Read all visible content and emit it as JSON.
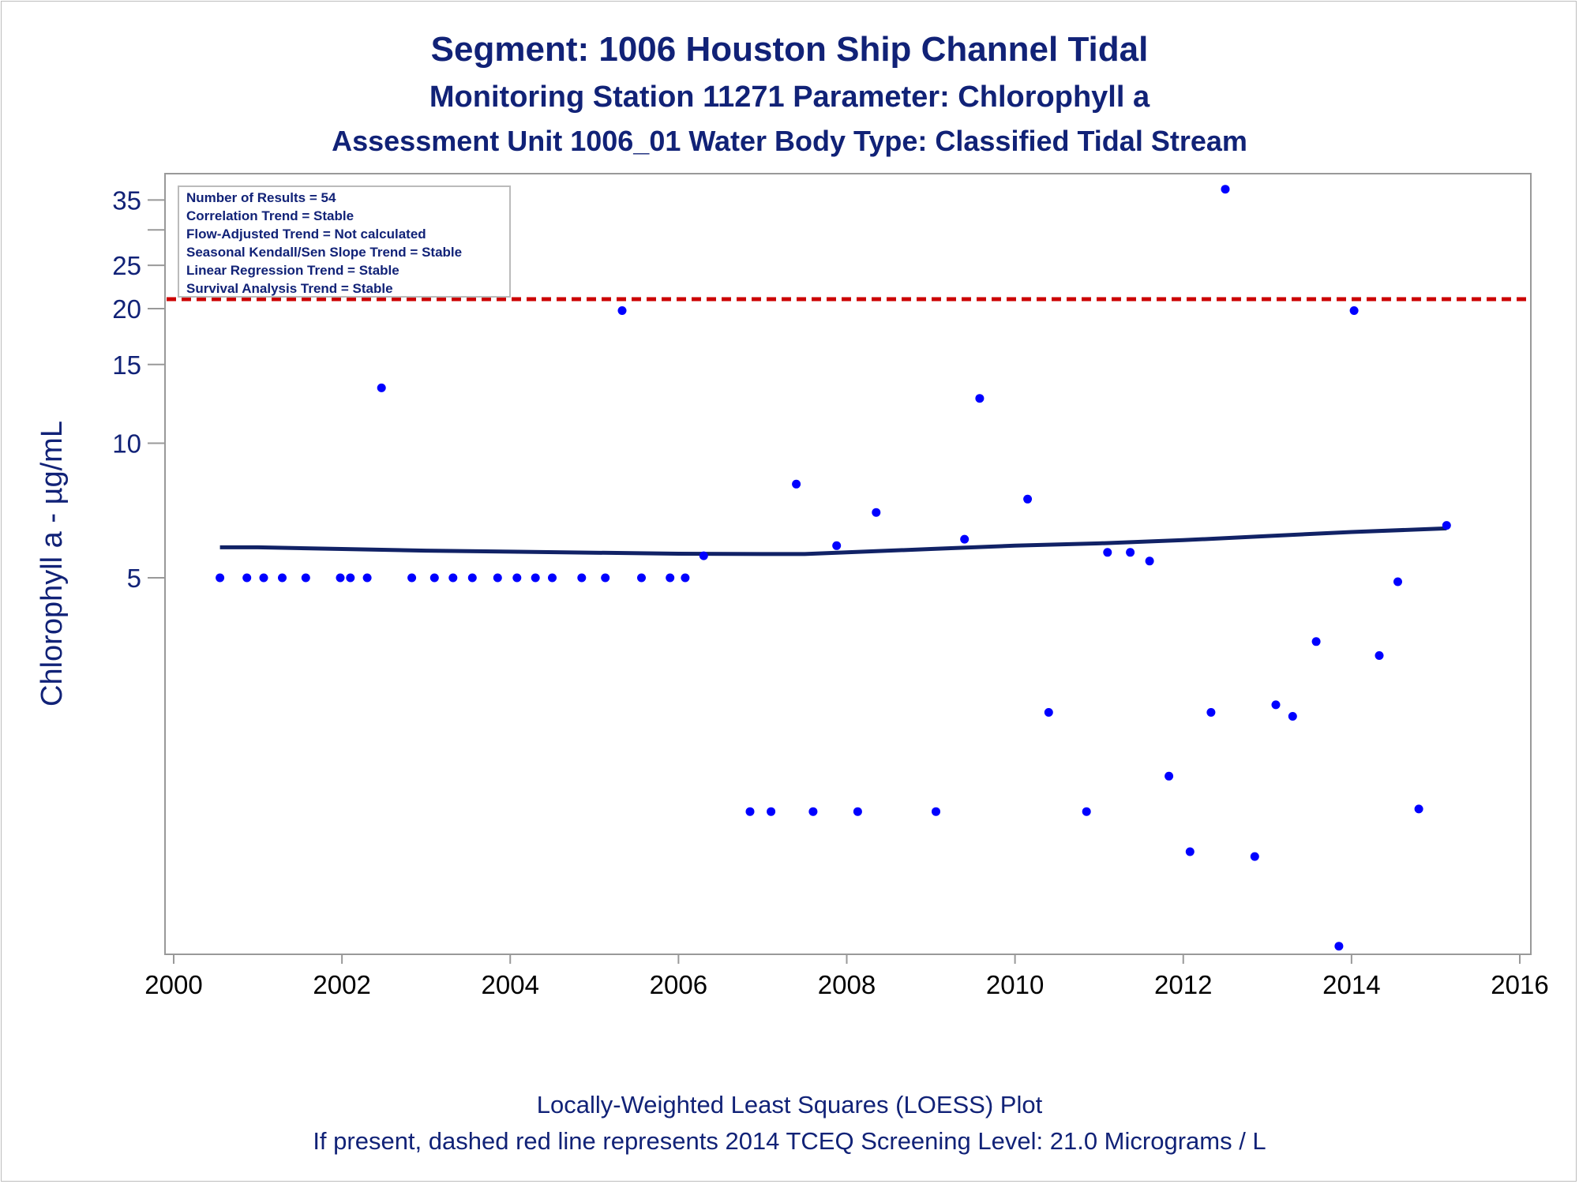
{
  "title": "Segment: 1006  Houston Ship Channel Tidal",
  "subtitle1": "Monitoring Station 11271 Parameter: Chlorophyll a",
  "subtitle2": "Assessment Unit 1006_01   Water Body Type: Classified Tidal Stream",
  "stats_box": [
    "Number of Results = 54",
    "Correlation Trend = Stable",
    "Flow-Adjusted Trend = Not calculated",
    "Seasonal Kendall/Sen Slope Trend = Stable",
    "Linear Regression Trend = Stable",
    "Survival Analysis Trend = Stable"
  ],
  "footnotes": {
    "line1": "Locally-Weighted Least Squares (LOESS) Plot",
    "line2": "If present, dashed red line represents 2014 TCEQ Screening Level: 21.0 Micrograms / L"
  },
  "colors": {
    "text": "#112277",
    "points": "#0000ff",
    "loess": "#112266",
    "screening": "#cc0000",
    "axis": "#999999"
  },
  "chart_data": {
    "type": "scatter",
    "xlabel": "",
    "ylabel": "Chlorophyll a -  µg/mL",
    "xlim": [
      2000,
      2016
    ],
    "ylim": [
      0.6,
      38
    ],
    "y_scale": "log",
    "x_ticks": [
      "2000",
      "2002",
      "2004",
      "2006",
      "2008",
      "2010",
      "2012",
      "2014",
      "2016"
    ],
    "y_ticks": [
      "5",
      "10",
      "15",
      "20",
      "25",
      "35"
    ],
    "y_minor_ticks": [
      30
    ],
    "grid": false,
    "legend_placement": "top-left",
    "screening_level": 21.0,
    "series": [
      {
        "points": [
          [
            2000.55,
            5
          ],
          [
            2000.87,
            5
          ],
          [
            2001.07,
            5
          ],
          [
            2001.29,
            5
          ],
          [
            2001.57,
            5
          ],
          [
            2001.98,
            5
          ],
          [
            2002.1,
            5
          ],
          [
            2002.3,
            5
          ],
          [
            2002.47,
            13.3
          ],
          [
            2002.83,
            5
          ],
          [
            2003.1,
            5
          ],
          [
            2003.32,
            5
          ],
          [
            2003.55,
            5
          ],
          [
            2003.85,
            5
          ],
          [
            2004.08,
            5
          ],
          [
            2004.3,
            5
          ],
          [
            2004.5,
            5
          ],
          [
            2004.85,
            5
          ],
          [
            2005.13,
            5
          ],
          [
            2005.33,
            19.8
          ],
          [
            2005.56,
            5
          ],
          [
            2005.9,
            5
          ],
          [
            2006.08,
            5
          ],
          [
            2006.3,
            5.6
          ],
          [
            2006.85,
            1.5
          ],
          [
            2007.1,
            1.5
          ],
          [
            2007.6,
            1.5
          ],
          [
            2007.4,
            8.1
          ],
          [
            2007.88,
            5.9
          ],
          [
            2008.13,
            1.5
          ],
          [
            2008.35,
            7.0
          ],
          [
            2009.06,
            1.5
          ],
          [
            2009.4,
            6.1
          ],
          [
            2009.58,
            12.6
          ],
          [
            2010.15,
            7.5
          ],
          [
            2010.4,
            2.5
          ],
          [
            2010.85,
            1.5
          ],
          [
            2011.1,
            5.7
          ],
          [
            2011.37,
            5.7
          ],
          [
            2011.6,
            5.45
          ],
          [
            2011.83,
            1.8
          ],
          [
            2012.08,
            1.22
          ],
          [
            2012.33,
            2.5
          ],
          [
            2012.5,
            37.0
          ],
          [
            2012.85,
            1.19
          ],
          [
            2013.1,
            2.6
          ],
          [
            2013.3,
            2.45
          ],
          [
            2013.58,
            3.6
          ],
          [
            2013.85,
            0.75
          ],
          [
            2014.03,
            19.8
          ],
          [
            2014.33,
            3.35
          ],
          [
            2014.55,
            4.9
          ],
          [
            2014.8,
            1.52
          ],
          [
            2015.13,
            6.55
          ]
        ]
      }
    ],
    "loess_curve": [
      [
        2000.55,
        5.85
      ],
      [
        2001.0,
        5.85
      ],
      [
        2002.0,
        5.8
      ],
      [
        2003.0,
        5.75
      ],
      [
        2004.0,
        5.72
      ],
      [
        2005.0,
        5.69
      ],
      [
        2006.0,
        5.66
      ],
      [
        2007.0,
        5.65
      ],
      [
        2007.5,
        5.65
      ],
      [
        2008.0,
        5.7
      ],
      [
        2009.0,
        5.8
      ],
      [
        2010.0,
        5.9
      ],
      [
        2011.0,
        5.97
      ],
      [
        2012.0,
        6.07
      ],
      [
        2013.0,
        6.2
      ],
      [
        2014.0,
        6.33
      ],
      [
        2015.13,
        6.45
      ]
    ]
  }
}
